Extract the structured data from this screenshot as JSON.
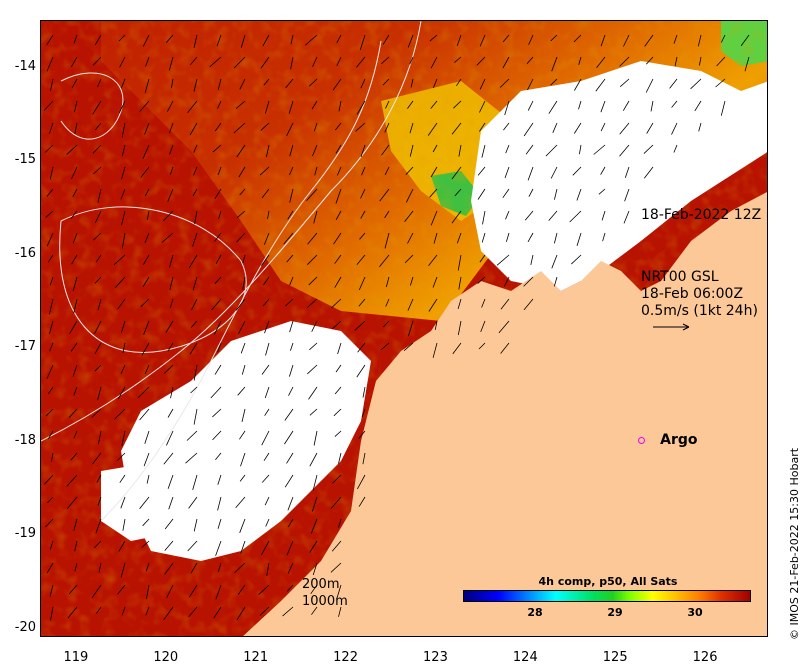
{
  "axes": {
    "x_ticks": [
      "119",
      "120",
      "121",
      "122",
      "123",
      "124",
      "125",
      "126"
    ],
    "y_ticks": [
      "-14",
      "-15",
      "-16",
      "-17",
      "-18",
      "-19",
      "-20"
    ],
    "lon_range": [
      118.6,
      126.7
    ],
    "lat_range": [
      -20.1,
      -13.5
    ]
  },
  "annotations": {
    "timestamp": "18-Feb-2022 12Z",
    "current_title": "NRT00 GSL",
    "current_time": "18-Feb 06:00Z",
    "current_scale": "0.5m/s (1kt 24h)"
  },
  "argo": {
    "label": "Argo",
    "lon": 125.3,
    "lat": -18.0,
    "marker_color": "#ee00ee"
  },
  "colorbar": {
    "title": "4h comp, p50, All Sats",
    "ticks": [
      "28",
      "29",
      "30"
    ],
    "tick_values": [
      28,
      29,
      30
    ],
    "range": [
      27.1,
      30.7
    ]
  },
  "depth_contours": {
    "label_200": "200m",
    "label_1000": "1000m"
  },
  "credit": "© IMOS 21-Feb-2022 15:30 Hobart",
  "colors": {
    "land": "#fdc898",
    "cloud": "#ffffff",
    "sst_hot": "#b81200",
    "sst_warm": "#d84a00"
  }
}
